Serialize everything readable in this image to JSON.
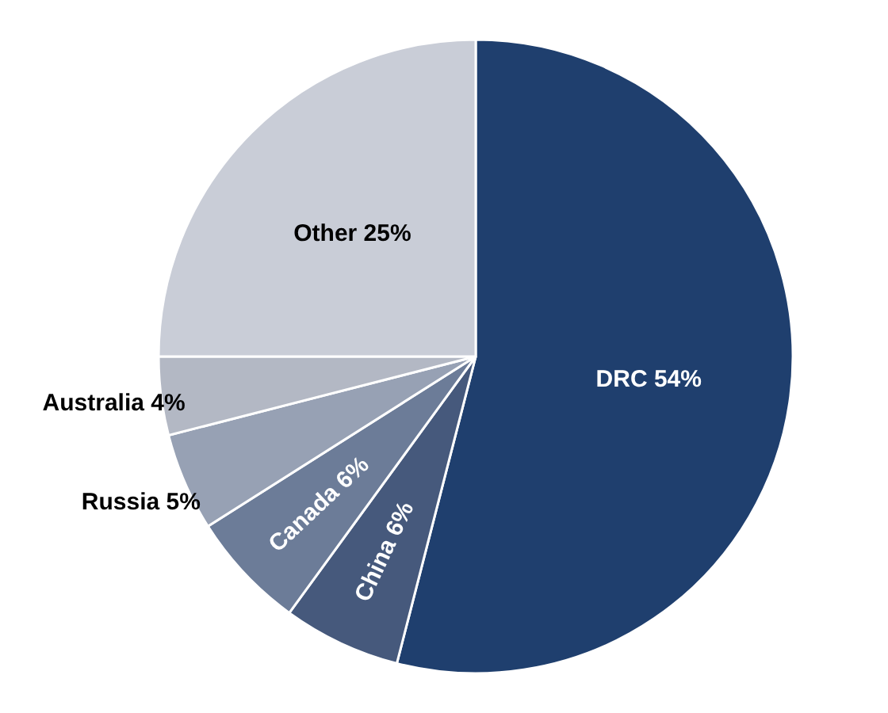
{
  "chart_data": {
    "type": "pie",
    "categories": [
      "DRC",
      "China",
      "Canada",
      "Russia",
      "Australia",
      "Other"
    ],
    "values": [
      54,
      6,
      6,
      5,
      4,
      25
    ],
    "value_labels": [
      "54%",
      "6%",
      "6%",
      "5%",
      "4%",
      "25%"
    ],
    "colors": [
      "#1f3f6e",
      "#46597c",
      "#6c7c98",
      "#97a1b4",
      "#b3b8c4",
      "#c9cdd7"
    ]
  }
}
